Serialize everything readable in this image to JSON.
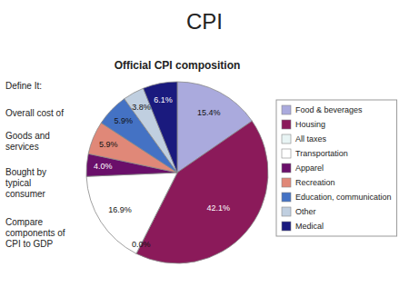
{
  "chart_data": {
    "type": "pie",
    "title": "CPI",
    "subtitle": "Official CPI composition",
    "categories": [
      "Food & beverages",
      "Housing",
      "All taxes",
      "Transportation",
      "Apparel",
      "Recreation",
      "Education, communication",
      "Other",
      "Medical"
    ],
    "values": [
      15.4,
      42.1,
      0.0,
      16.9,
      4.0,
      5.9,
      5.9,
      3.8,
      6.1
    ],
    "value_labels": [
      "15.4%",
      "42.1%",
      "0.0%",
      "16.9%",
      "4.0%",
      "5.9%",
      "5.9%",
      "3.8%",
      "6.1%"
    ],
    "colors": [
      "#aaaadd",
      "#8b1a5a",
      "#e8f4f4",
      "#ffffff",
      "#6a0f6a",
      "#e08878",
      "#4472c4",
      "#c0cfe0",
      "#1a1a7e"
    ],
    "data_labels": true,
    "legend": "right",
    "annotations": [
      "Define It:",
      "Overall cost of",
      "Goods and\nservices",
      "Bought by\ntypical\nconsumer",
      "Compare\ncomponents of\nCPI to GDP"
    ]
  }
}
